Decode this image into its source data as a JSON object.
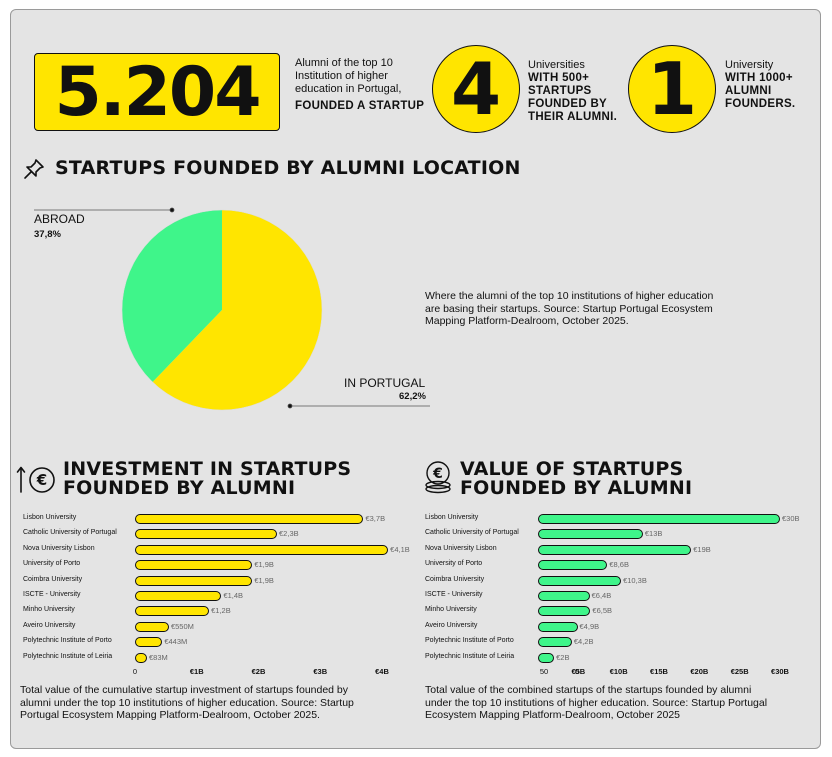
{
  "stats": {
    "alumni_number": "5.204",
    "alumni_text": [
      "Alumni of the top 10",
      "Institution of higher",
      "education in Portugal,"
    ],
    "alumni_bold": "FOUNDED A STARTUP",
    "universities_number": "4",
    "universities_text": "Universities",
    "universities_bold": [
      "WITH 500+",
      "STARTUPS",
      "FOUNDED BY",
      "THEIR ALUMNI."
    ],
    "university_number": "1",
    "university_text": "University",
    "university_bold": [
      "WITH 1000+",
      "ALUMNI",
      "FOUNDERS."
    ]
  },
  "location": {
    "title": "STARTUPS FOUNDED BY ALUMNI LOCATION",
    "description": [
      "Where the alumni of the top 10 institutions of higher education",
      "are basing their startups. Source: Startup Portugal Ecosystem",
      "Mapping Platform-Dealroom, October 2025."
    ]
  },
  "investment": {
    "title": [
      "INVESTMENT IN STARTUPS",
      "FOUNDED BY ALUMNI"
    ],
    "caption": [
      "Total value of the cumulative startup investment of startups founded by",
      "alumni under the top 10 institutions of higher education. Source: Startup",
      "Portugal Ecosystem Mapping Platform-Dealroom, October 2025."
    ]
  },
  "valuation": {
    "title": [
      "VALUE OF STARTUPS",
      "FOUNDED BY ALUMNI"
    ],
    "caption": [
      "Total value of the combined startups of the startups founded by alumni",
      "under the top 10 institutions of higher education. Source: Startup Portugal",
      "Ecosystem Mapping Platform-Dealroom, October 2025"
    ]
  },
  "colors": {
    "yellow": "#ffe500",
    "green": "#3ff58a",
    "panel": "#e4e4e4",
    "ink": "#111111"
  },
  "icons": {
    "location": "pushpin-icon",
    "investment": "arrow-up-euro-icon",
    "valuation": "euro-coins-icon"
  },
  "chart_data": [
    {
      "type": "pie",
      "labels": [
        "ABROAD",
        "IN PORTUGAL"
      ],
      "values": [
        37.8,
        62.2
      ],
      "value_labels": [
        "37,8%",
        "62,2%"
      ],
      "colors": [
        "#3ff58a",
        "#ffe500"
      ]
    },
    {
      "type": "bar",
      "orientation": "horizontal",
      "categories": [
        "Lisbon University",
        "Catholic University of Portugal",
        "Nova University  Lisbon",
        "University  of Porto",
        "Coimbra University",
        "ISCTE - University",
        "Minho University",
        "Aveiro University",
        "Polytechnic Institute of Porto",
        "Polytechnic Institute of Leiria"
      ],
      "values": [
        3.7,
        2.3,
        4.1,
        1.9,
        1.9,
        1.4,
        1.2,
        0.55,
        0.443,
        0.083
      ],
      "value_labels": [
        "€3,7B",
        "€2,3B",
        "€4,1B",
        "€1,9B",
        "€1,9B",
        "€1,4B",
        "€1,2B",
        "€550M",
        "€443M",
        "€83M"
      ],
      "unit": "€B",
      "xlim": [
        0,
        4
      ],
      "xticks": [
        0,
        1,
        2,
        3,
        4
      ],
      "xtick_labels": [
        "0",
        "€1B",
        "€2B",
        "€3B",
        "€4B"
      ],
      "color": "#ffe500"
    },
    {
      "type": "bar",
      "orientation": "horizontal",
      "categories": [
        "Lisbon University",
        "Catholic University of Portugal",
        "Nova University  Lisbon",
        "University  of Porto",
        "Coimbra University",
        "ISCTE - University",
        "Minho University",
        "Aveiro University",
        "Polytechnic Institute of Porto",
        "Polytechnic Institute of Leiria"
      ],
      "values": [
        30,
        13,
        19,
        8.6,
        10.3,
        6.4,
        6.5,
        4.9,
        4.2,
        2
      ],
      "value_labels": [
        "€30B",
        "€13B",
        "€19B",
        "€8,6B",
        "€10,3B",
        "€6,4B",
        "€6,5B",
        "€4,9B",
        "€4,2B",
        "€2B"
      ],
      "unit": "€B",
      "xlim": [
        0,
        30
      ],
      "xticks": [
        0,
        5,
        10,
        15,
        20,
        25,
        30
      ],
      "xtick_labels": [
        "0",
        "€5B",
        "€10B",
        "€15B",
        "€20B",
        "€25B",
        "€30B"
      ],
      "extra_tick_label": "50",
      "color": "#3ff58a"
    }
  ]
}
